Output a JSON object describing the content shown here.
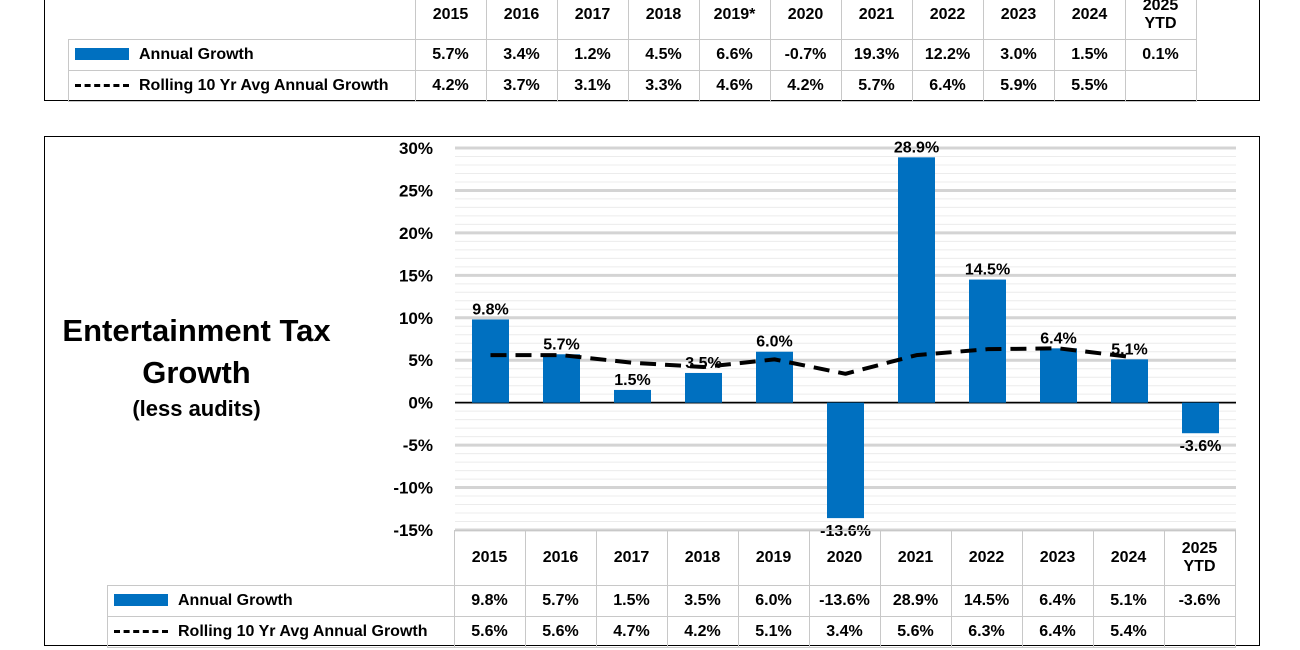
{
  "top_table": {
    "years": [
      "2015",
      "2016",
      "2017",
      "2018",
      "2019*",
      "2020",
      "2021",
      "2022",
      "2023",
      "2024",
      "2025 YTD"
    ],
    "rows": [
      {
        "label": "Annual Growth",
        "marker": "bar",
        "values": [
          "5.7%",
          "3.4%",
          "1.2%",
          "4.5%",
          "6.6%",
          "-0.7%",
          "19.3%",
          "12.2%",
          "3.0%",
          "1.5%",
          "0.1%"
        ]
      },
      {
        "label": "Rolling 10 Yr Avg Annual Growth",
        "marker": "dash",
        "values": [
          "4.2%",
          "3.7%",
          "3.1%",
          "3.3%",
          "4.6%",
          "4.2%",
          "5.7%",
          "6.4%",
          "5.9%",
          "5.5%",
          ""
        ]
      }
    ]
  },
  "chart_data": {
    "type": "bar",
    "title": "Entertainment Tax Growth",
    "subtitle": "(less audits)",
    "categories": [
      "2015",
      "2016",
      "2017",
      "2018",
      "2019",
      "2020",
      "2021",
      "2022",
      "2023",
      "2024",
      "2025 YTD"
    ],
    "series": [
      {
        "name": "Annual Growth",
        "type": "bar",
        "color": "#0070c0",
        "values": [
          9.8,
          5.7,
          1.5,
          3.5,
          6.0,
          -13.6,
          28.9,
          14.5,
          6.4,
          5.1,
          -3.6
        ],
        "labels": [
          "9.8%",
          "5.7%",
          "1.5%",
          "3.5%",
          "6.0%",
          "-13.6%",
          "28.9%",
          "14.5%",
          "6.4%",
          "5.1%",
          "-3.6%"
        ]
      },
      {
        "name": "Rolling 10 Yr Avg Annual Growth",
        "type": "line",
        "style": "dashed",
        "color": "#000000",
        "values": [
          5.6,
          5.6,
          4.7,
          4.2,
          5.1,
          3.4,
          5.6,
          6.3,
          6.4,
          5.4,
          null
        ],
        "labels": [
          "5.6%",
          "5.6%",
          "4.7%",
          "4.2%",
          "5.1%",
          "3.4%",
          "5.6%",
          "6.3%",
          "6.4%",
          "5.4%",
          ""
        ]
      }
    ],
    "ylim": [
      -15,
      30
    ],
    "yticks": [
      "30%",
      "25%",
      "20%",
      "15%",
      "10%",
      "5%",
      "0%",
      "-5%",
      "-10%",
      "-15%"
    ],
    "ytick_values": [
      30,
      25,
      20,
      15,
      10,
      5,
      0,
      -5,
      -10,
      -15
    ],
    "grid": true,
    "legend": "data-table-below"
  }
}
